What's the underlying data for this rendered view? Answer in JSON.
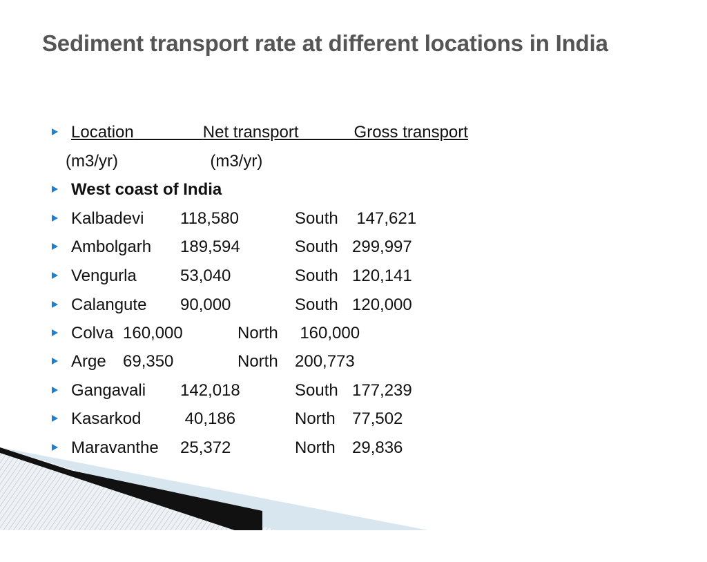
{
  "slide": {
    "title": "Sediment transport rate at different locations in India",
    "header": {
      "location": "Location",
      "gap1": "               ",
      "net": "Net transport",
      "gap2": "            ",
      "gross": "Gross transport"
    },
    "units_line": "(m3/yr)                    (m3/yr)",
    "section": "West coast of India",
    "rows": [
      {
        "location": "Kalbadevi",
        "net": "118,580",
        "dir": "South",
        "gross": "  147,621"
      },
      {
        "location": "Ambolgarh",
        "net": "189,594",
        "dir": "South",
        "gross": "299,997"
      },
      {
        "location": "Vengurla",
        "net": "53,040",
        "dir": "South",
        "gross": "120,141"
      },
      {
        "location": "Calangute",
        "net": "90,000",
        "dir": "South",
        "gross": "120,000"
      },
      {
        "location": "Colva",
        "net": "160,000",
        "dir": "North",
        "gross": "  160,000"
      },
      {
        "location": "Arge",
        "net": "69,350",
        "dir": "North",
        "gross": "200,773"
      },
      {
        "location": "Gangavali",
        "net": "142,018",
        "dir": "South",
        "gross": "177,239"
      },
      {
        "location": "Kasarkod",
        "net": " 40,186",
        "dir": "North",
        "gross": "77,502"
      },
      {
        "location": "Maravanthe",
        "net": "25,372",
        "dir": "North",
        "gross": "29,836"
      }
    ],
    "colors": {
      "title": "#555555",
      "bullet": "#1f7fd0",
      "text": "#111111",
      "decoration_light": "#d8e6ef",
      "decoration_dark": "#111111"
    }
  }
}
